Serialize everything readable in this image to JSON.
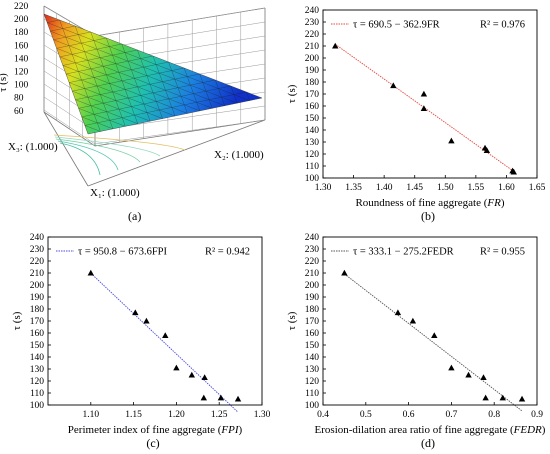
{
  "chart_data": [
    {
      "panel": "a",
      "type": "surface",
      "caption": "(a)",
      "ylabel": "τ (s)",
      "z_ticks": [
        "220",
        "200",
        "180",
        "160",
        "140",
        "120",
        "100",
        "80",
        "60"
      ],
      "vertex_labels": [
        "X₃: (1.000)",
        "X₂: (1.000)",
        "X₁: (1.000)"
      ]
    },
    {
      "panel": "b",
      "type": "scatter",
      "caption": "(b)",
      "xlabel_main": "Roundness of fine aggregate (",
      "xlabel_var": "FR",
      "xlabel_close": ")",
      "ylabel": "τ (s)",
      "xlim": [
        1.3,
        1.65
      ],
      "ylim": [
        100,
        240
      ],
      "x_ticks": [
        "1.30",
        "1.35",
        "1.40",
        "1.45",
        "1.50",
        "1.55",
        "1.60",
        "1.65"
      ],
      "y_ticks": [
        "100",
        "110",
        "120",
        "130",
        "140",
        "150",
        "160",
        "170",
        "180",
        "190",
        "200",
        "210",
        "220",
        "230",
        "240"
      ],
      "legend_eq": "τ = 690.5 − 362.9FR",
      "legend_r2": "R² = 0.976",
      "fit": {
        "intercept": 690.5,
        "slope": -362.9,
        "color": "#e8463c"
      },
      "x": [
        1.32,
        1.415,
        1.465,
        1.465,
        1.51,
        1.565,
        1.568,
        1.61,
        1.612
      ],
      "y": [
        210,
        177,
        170,
        158,
        131,
        125,
        123,
        106,
        105
      ]
    },
    {
      "panel": "c",
      "type": "scatter",
      "caption": "(c)",
      "xlabel_main": "Perimeter index of fine aggregate (",
      "xlabel_var": "FPI",
      "xlabel_close": ")",
      "ylabel": "τ (s)",
      "xlim": [
        1.05,
        1.3
      ],
      "ylim": [
        100,
        240
      ],
      "x_ticks": [
        "1.10",
        "1.15",
        "1.20",
        "1.25",
        "1.30"
      ],
      "y_ticks": [
        "100",
        "110",
        "120",
        "130",
        "140",
        "150",
        "160",
        "170",
        "180",
        "190",
        "200",
        "210",
        "220",
        "230",
        "240"
      ],
      "legend_eq": "τ = 950.8 − 673.6FPI",
      "legend_r2": "R² = 0.942",
      "fit": {
        "intercept": 950.8,
        "slope": -673.6,
        "color": "#4a4ae0"
      },
      "x": [
        1.1,
        1.152,
        1.165,
        1.187,
        1.2,
        1.218,
        1.233,
        1.232,
        1.252,
        1.272
      ],
      "y": [
        210,
        177,
        170,
        158,
        131,
        125,
        123,
        106,
        106,
        105
      ]
    },
    {
      "panel": "d",
      "type": "scatter",
      "caption": "(d)",
      "xlabel_main": "Erosion-dilation area ratio of fine aggregate (",
      "xlabel_var": "FEDR",
      "xlabel_close": ")",
      "ylabel": "τ (s)",
      "xlim": [
        0.4,
        0.9
      ],
      "ylim": [
        100,
        240
      ],
      "x_ticks": [
        "0.4",
        "0.5",
        "0.6",
        "0.7",
        "0.8",
        "0.9"
      ],
      "y_ticks": [
        "100",
        "110",
        "120",
        "130",
        "140",
        "150",
        "160",
        "170",
        "180",
        "190",
        "200",
        "210",
        "220",
        "230",
        "240"
      ],
      "legend_eq": "τ = 333.1 − 275.2FEDR",
      "legend_r2": "R² = 0.955",
      "fit": {
        "intercept": 333.1,
        "slope": -275.2,
        "color": "#555555"
      },
      "x": [
        0.45,
        0.575,
        0.61,
        0.66,
        0.7,
        0.74,
        0.775,
        0.78,
        0.82,
        0.865
      ],
      "y": [
        210,
        177,
        170,
        158,
        131,
        125,
        123,
        106,
        106,
        105
      ]
    }
  ]
}
